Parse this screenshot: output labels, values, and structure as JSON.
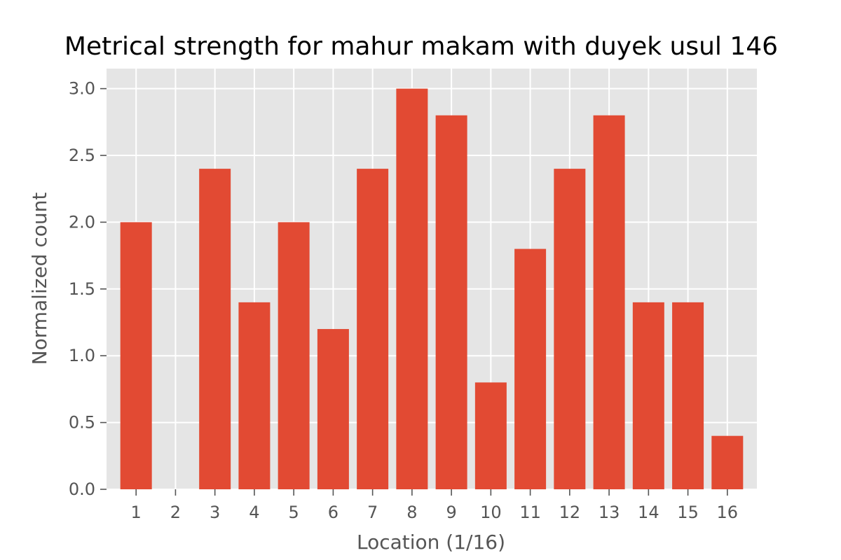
{
  "chart_data": {
    "type": "bar",
    "title": "Metrical strength for mahur makam with duyek usul 146",
    "xlabel": "Location (1/16)",
    "ylabel": "Normalized count",
    "categories": [
      "1",
      "2",
      "3",
      "4",
      "5",
      "6",
      "7",
      "8",
      "9",
      "10",
      "11",
      "12",
      "13",
      "14",
      "15",
      "16"
    ],
    "values": [
      2.0,
      0.0,
      2.4,
      1.4,
      2.0,
      1.2,
      2.4,
      3.0,
      2.8,
      0.8,
      1.8,
      2.4,
      2.8,
      1.4,
      1.4,
      0.4
    ],
    "ylim": [
      0,
      3.15
    ],
    "yticks": [
      {
        "value": 0.0,
        "label": "0.0"
      },
      {
        "value": 0.5,
        "label": "0.5"
      },
      {
        "value": 1.0,
        "label": "1.0"
      },
      {
        "value": 1.5,
        "label": "1.5"
      },
      {
        "value": 2.0,
        "label": "2.0"
      },
      {
        "value": 2.5,
        "label": "2.5"
      },
      {
        "value": 3.0,
        "label": "3.0"
      }
    ],
    "grid": true,
    "style": "ggplot",
    "colors": {
      "bar": "#e24a33",
      "background": "#e5e5e5",
      "grid": "#ffffff",
      "text": "#555555"
    }
  }
}
